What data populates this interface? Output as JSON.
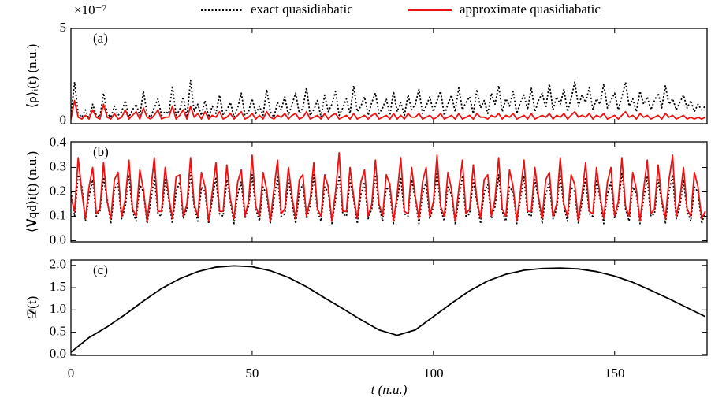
{
  "chart_data": [
    {
      "type": "line",
      "label": "(a)",
      "ylabel": "⟨ρ⟩ᵢ(t) (n.u.)",
      "offset_label": "×10⁻⁷",
      "xlim": [
        0,
        175.5
      ],
      "ylim": [
        -0.15,
        5
      ],
      "yticks": [
        0,
        5
      ],
      "x": [
        0,
        1,
        2,
        3,
        4,
        5,
        6,
        7,
        8,
        9,
        10,
        11,
        12,
        13,
        14,
        15,
        16,
        17,
        18,
        19,
        20,
        21,
        22,
        23,
        24,
        25,
        26,
        27,
        28,
        29,
        30,
        31,
        32,
        33,
        34,
        35,
        36,
        37,
        38,
        39,
        40,
        41,
        42,
        43,
        44,
        45,
        46,
        47,
        48,
        49,
        50,
        51,
        52,
        53,
        54,
        55,
        56,
        57,
        58,
        59,
        60,
        61,
        62,
        63,
        64,
        65,
        66,
        67,
        68,
        69,
        70,
        71,
        72,
        73,
        74,
        75,
        76,
        77,
        78,
        79,
        80,
        81,
        82,
        83,
        84,
        85,
        86,
        87,
        88,
        89,
        90,
        91,
        92,
        93,
        94,
        95,
        96,
        97,
        98,
        99,
        100,
        101,
        102,
        103,
        104,
        105,
        106,
        107,
        108,
        109,
        110,
        111,
        112,
        113,
        114,
        115,
        116,
        117,
        118,
        119,
        120,
        121,
        122,
        123,
        124,
        125,
        126,
        127,
        128,
        129,
        130,
        131,
        132,
        133,
        134,
        135,
        136,
        137,
        138,
        139,
        140,
        141,
        142,
        143,
        144,
        145,
        146,
        147,
        148,
        149,
        150,
        151,
        152,
        153,
        154,
        155,
        156,
        157,
        158,
        159,
        160,
        161,
        162,
        163,
        164,
        165,
        166,
        167,
        168,
        169,
        170,
        171,
        172,
        173,
        174,
        175
      ],
      "series": [
        {
          "name": "exact quasidiabatic",
          "color": "#000000",
          "dash": true,
          "values": [
            0.3,
            2.1,
            0.4,
            0.2,
            0.6,
            0.1,
            0.9,
            0.3,
            0.2,
            1.5,
            0.4,
            0.2,
            0.8,
            0.3,
            0.5,
            1.1,
            0.2,
            0.6,
            0.9,
            0.3,
            1.6,
            0.4,
            0.2,
            0.7,
            1.2,
            0.3,
            0.5,
            0.4,
            1.9,
            0.3,
            0.6,
            1.3,
            0.2,
            2.2,
            0.5,
            0.9,
            0.3,
            1.1,
            0.2,
            0.8,
            0.4,
            1.4,
            0.3,
            0.6,
            1.0,
            0.2,
            0.7,
            1.5,
            0.3,
            0.5,
            1.2,
            0.4,
            0.8,
            0.3,
            1.7,
            0.5,
            0.2,
            1.0,
            0.6,
            1.3,
            0.3,
            0.9,
            1.5,
            0.4,
            0.7,
            1.8,
            0.3,
            0.6,
            1.1,
            0.2,
            1.4,
            0.5,
            0.9,
            1.6,
            0.3,
            0.7,
            1.2,
            0.4,
            1.9,
            0.5,
            0.8,
            1.3,
            0.3,
            1.0,
            1.5,
            0.4,
            0.7,
            1.2,
            0.3,
            1.6,
            0.5,
            1.0,
            0.3,
            1.4,
            0.6,
            0.9,
            1.7,
            0.4,
            0.8,
            1.3,
            0.5,
            1.1,
            1.6,
            0.3,
            0.9,
            1.4,
            0.5,
            1.8,
            0.6,
            1.0,
            1.3,
            0.4,
            1.7,
            0.7,
            1.1,
            0.4,
            1.5,
            0.9,
            1.9,
            0.5,
            1.2,
            0.8,
            1.6,
            0.4,
            1.0,
            1.4,
            0.6,
            1.8,
            0.5,
            1.1,
            1.5,
            0.7,
            2.0,
            0.6,
            1.3,
            0.9,
            1.7,
            0.5,
            1.2,
            2.1,
            0.8,
            1.4,
            1.0,
            1.8,
            0.6,
            1.2,
            0.9,
            2.0,
            0.7,
            1.1,
            1.5,
            0.6,
            1.3,
            2.1,
            0.8,
            1.2,
            0.5,
            1.6,
            0.9,
            1.3,
            0.6,
            1.1,
            1.5,
            0.7,
            1.9,
            0.9,
            1.2,
            0.6,
            1.0,
            1.4,
            0.7,
            1.1,
            0.5,
            0.9,
            0.6,
            0.8
          ]
        },
        {
          "name": "approximate quasidiabatic",
          "color": "#ee1111",
          "dash": false,
          "values": [
            0.1,
            1.1,
            0.2,
            0.1,
            0.3,
            0.1,
            0.6,
            0.2,
            0.1,
            0.9,
            0.2,
            0.1,
            0.4,
            0.1,
            0.2,
            0.6,
            0.1,
            0.3,
            0.5,
            0.1,
            0.7,
            0.2,
            0.1,
            0.3,
            0.6,
            0.1,
            0.2,
            0.2,
            0.8,
            0.1,
            0.3,
            0.6,
            0.1,
            0.8,
            0.2,
            0.4,
            0.1,
            0.5,
            0.1,
            0.3,
            0.2,
            0.5,
            0.1,
            0.2,
            0.4,
            0.1,
            0.3,
            0.5,
            0.1,
            0.2,
            0.4,
            0.1,
            0.3,
            0.1,
            0.5,
            0.2,
            0.1,
            0.3,
            0.2,
            0.4,
            0.1,
            0.3,
            0.4,
            0.1,
            0.2,
            0.5,
            0.1,
            0.2,
            0.3,
            0.1,
            0.4,
            0.1,
            0.3,
            0.4,
            0.1,
            0.2,
            0.3,
            0.1,
            0.4,
            0.1,
            0.2,
            0.3,
            0.1,
            0.3,
            0.4,
            0.1,
            0.2,
            0.3,
            0.1,
            0.4,
            0.1,
            0.3,
            0.1,
            0.4,
            0.2,
            0.2,
            0.4,
            0.1,
            0.2,
            0.3,
            0.1,
            0.2,
            0.4,
            0.1,
            0.2,
            0.3,
            0.1,
            0.4,
            0.1,
            0.2,
            0.3,
            0.1,
            0.4,
            0.2,
            0.2,
            0.1,
            0.3,
            0.2,
            0.4,
            0.1,
            0.3,
            0.2,
            0.4,
            0.1,
            0.2,
            0.3,
            0.1,
            0.4,
            0.1,
            0.2,
            0.3,
            0.2,
            0.4,
            0.1,
            0.3,
            0.2,
            0.4,
            0.1,
            0.3,
            0.5,
            0.2,
            0.3,
            0.2,
            0.4,
            0.1,
            0.3,
            0.2,
            0.4,
            0.1,
            0.2,
            0.3,
            0.1,
            0.3,
            0.5,
            0.2,
            0.3,
            0.1,
            0.4,
            0.2,
            0.3,
            0.1,
            0.2,
            0.3,
            0.1,
            0.4,
            0.2,
            0.3,
            0.1,
            0.2,
            0.3,
            0.1,
            0.2,
            0.1,
            0.2,
            0.1,
            0.2
          ]
        }
      ]
    },
    {
      "type": "line",
      "label": "(b)",
      "ylabel": "⟨𝐕qd⟩i(t) (n.u.)",
      "xlim": [
        0,
        175.5
      ],
      "ylim": [
        -0.005,
        0.405
      ],
      "yticks": [
        {
          "value": 0,
          "label": "0.0"
        },
        0.1,
        0.2,
        0.3,
        0.4
      ],
      "x": [
        0,
        1,
        2,
        3,
        4,
        5,
        6,
        7,
        8,
        9,
        10,
        11,
        12,
        13,
        14,
        15,
        16,
        17,
        18,
        19,
        20,
        21,
        22,
        23,
        24,
        25,
        26,
        27,
        28,
        29,
        30,
        31,
        32,
        33,
        34,
        35,
        36,
        37,
        38,
        39,
        40,
        41,
        42,
        43,
        44,
        45,
        46,
        47,
        48,
        49,
        50,
        51,
        52,
        53,
        54,
        55,
        56,
        57,
        58,
        59,
        60,
        61,
        62,
        63,
        64,
        65,
        66,
        67,
        68,
        69,
        70,
        71,
        72,
        73,
        74,
        75,
        76,
        77,
        78,
        79,
        80,
        81,
        82,
        83,
        84,
        85,
        86,
        87,
        88,
        89,
        90,
        91,
        92,
        93,
        94,
        95,
        96,
        97,
        98,
        99,
        100,
        101,
        102,
        103,
        104,
        105,
        106,
        107,
        108,
        109,
        110,
        111,
        112,
        113,
        114,
        115,
        116,
        117,
        118,
        119,
        120,
        121,
        122,
        123,
        124,
        125,
        126,
        127,
        128,
        129,
        130,
        131,
        132,
        133,
        134,
        135,
        136,
        137,
        138,
        139,
        140,
        141,
        142,
        143,
        144,
        145,
        146,
        147,
        148,
        149,
        150,
        151,
        152,
        153,
        154,
        155,
        156,
        157,
        158,
        159,
        160,
        161,
        162,
        163,
        164,
        165,
        166,
        167,
        168,
        169,
        170,
        171,
        172,
        173,
        174,
        175
      ],
      "series": [
        {
          "color": "#000000",
          "dash": true,
          "values": [
            0.2,
            0.1,
            0.27,
            0.22,
            0.08,
            0.18,
            0.25,
            0.1,
            0.12,
            0.26,
            0.17,
            0.07,
            0.21,
            0.24,
            0.09,
            0.14,
            0.27,
            0.12,
            0.08,
            0.23,
            0.2,
            0.07,
            0.16,
            0.26,
            0.11,
            0.1,
            0.25,
            0.17,
            0.07,
            0.2,
            0.24,
            0.09,
            0.13,
            0.28,
            0.14,
            0.08,
            0.22,
            0.2,
            0.07,
            0.17,
            0.26,
            0.11,
            0.1,
            0.25,
            0.16,
            0.07,
            0.19,
            0.24,
            0.09,
            0.14,
            0.27,
            0.13,
            0.08,
            0.22,
            0.19,
            0.07,
            0.17,
            0.26,
            0.1,
            0.11,
            0.25,
            0.16,
            0.07,
            0.2,
            0.23,
            0.09,
            0.14,
            0.27,
            0.12,
            0.08,
            0.22,
            0.2,
            0.07,
            0.17,
            0.26,
            0.11,
            0.1,
            0.25,
            0.17,
            0.07,
            0.19,
            0.24,
            0.09,
            0.13,
            0.27,
            0.14,
            0.08,
            0.22,
            0.2,
            0.07,
            0.16,
            0.26,
            0.11,
            0.1,
            0.25,
            0.17,
            0.07,
            0.19,
            0.24,
            0.09,
            0.14,
            0.28,
            0.13,
            0.08,
            0.22,
            0.19,
            0.07,
            0.17,
            0.26,
            0.1,
            0.11,
            0.25,
            0.16,
            0.07,
            0.2,
            0.23,
            0.09,
            0.14,
            0.27,
            0.12,
            0.08,
            0.22,
            0.2,
            0.07,
            0.17,
            0.26,
            0.11,
            0.1,
            0.25,
            0.17,
            0.07,
            0.19,
            0.24,
            0.09,
            0.13,
            0.27,
            0.14,
            0.08,
            0.22,
            0.2,
            0.07,
            0.16,
            0.26,
            0.11,
            0.1,
            0.25,
            0.17,
            0.07,
            0.19,
            0.24,
            0.09,
            0.14,
            0.28,
            0.13,
            0.08,
            0.22,
            0.19,
            0.07,
            0.17,
            0.26,
            0.1,
            0.11,
            0.25,
            0.16,
            0.07,
            0.2,
            0.27,
            0.09,
            0.14,
            0.25,
            0.12,
            0.08,
            0.22,
            0.2,
            0.07,
            0.12
          ]
        },
        {
          "color": "#ee1111",
          "dash": false,
          "values": [
            0.18,
            0.12,
            0.34,
            0.2,
            0.09,
            0.22,
            0.3,
            0.11,
            0.13,
            0.32,
            0.16,
            0.09,
            0.25,
            0.28,
            0.1,
            0.17,
            0.33,
            0.13,
            0.1,
            0.29,
            0.21,
            0.08,
            0.2,
            0.34,
            0.12,
            0.12,
            0.3,
            0.18,
            0.09,
            0.26,
            0.27,
            0.1,
            0.15,
            0.34,
            0.15,
            0.1,
            0.28,
            0.22,
            0.08,
            0.2,
            0.32,
            0.12,
            0.12,
            0.31,
            0.17,
            0.09,
            0.24,
            0.29,
            0.1,
            0.16,
            0.35,
            0.14,
            0.1,
            0.28,
            0.21,
            0.08,
            0.21,
            0.33,
            0.11,
            0.13,
            0.3,
            0.18,
            0.09,
            0.25,
            0.27,
            0.1,
            0.17,
            0.32,
            0.13,
            0.1,
            0.27,
            0.22,
            0.08,
            0.2,
            0.36,
            0.12,
            0.12,
            0.3,
            0.18,
            0.09,
            0.24,
            0.29,
            0.1,
            0.15,
            0.33,
            0.15,
            0.1,
            0.27,
            0.23,
            0.08,
            0.19,
            0.34,
            0.12,
            0.11,
            0.3,
            0.18,
            0.09,
            0.24,
            0.3,
            0.1,
            0.16,
            0.35,
            0.14,
            0.1,
            0.28,
            0.21,
            0.08,
            0.21,
            0.33,
            0.11,
            0.13,
            0.31,
            0.17,
            0.09,
            0.25,
            0.27,
            0.1,
            0.17,
            0.34,
            0.13,
            0.1,
            0.29,
            0.22,
            0.08,
            0.2,
            0.33,
            0.12,
            0.12,
            0.3,
            0.18,
            0.09,
            0.25,
            0.28,
            0.1,
            0.15,
            0.34,
            0.15,
            0.1,
            0.27,
            0.23,
            0.08,
            0.19,
            0.32,
            0.12,
            0.11,
            0.3,
            0.18,
            0.09,
            0.24,
            0.3,
            0.1,
            0.16,
            0.34,
            0.14,
            0.1,
            0.28,
            0.21,
            0.08,
            0.21,
            0.33,
            0.11,
            0.13,
            0.31,
            0.17,
            0.09,
            0.25,
            0.35,
            0.1,
            0.17,
            0.3,
            0.13,
            0.1,
            0.28,
            0.22,
            0.09,
            0.12
          ]
        }
      ]
    },
    {
      "type": "line",
      "label": "(c)",
      "ylabel": "𝒟(t)",
      "xlabel": "t (n.u.)",
      "xlim": [
        0,
        175.5
      ],
      "ylim": [
        -0.02,
        2.12
      ],
      "xticks": [
        0,
        50,
        100,
        150
      ],
      "yticks": [
        {
          "value": 0,
          "label": "0.0"
        },
        0.5,
        {
          "value": 1,
          "label": "1.0"
        },
        1.5,
        {
          "value": 2,
          "label": "2.0"
        }
      ],
      "x": [
        0,
        5,
        10,
        15,
        20,
        25,
        30,
        35,
        40,
        45,
        50,
        55,
        60,
        65,
        70,
        75,
        80,
        85,
        90,
        95,
        100,
        105,
        110,
        115,
        120,
        125,
        130,
        135,
        140,
        145,
        150,
        155,
        160,
        165,
        170,
        175
      ],
      "series": [
        {
          "color": "#000000",
          "dash": false,
          "values": [
            0.05,
            0.38,
            0.62,
            0.9,
            1.2,
            1.48,
            1.7,
            1.86,
            1.96,
            1.99,
            1.97,
            1.88,
            1.73,
            1.52,
            1.27,
            1.03,
            0.78,
            0.55,
            0.43,
            0.55,
            0.85,
            1.15,
            1.43,
            1.65,
            1.8,
            1.89,
            1.93,
            1.94,
            1.92,
            1.86,
            1.76,
            1.62,
            1.44,
            1.25,
            1.05,
            0.85
          ]
        }
      ]
    }
  ]
}
